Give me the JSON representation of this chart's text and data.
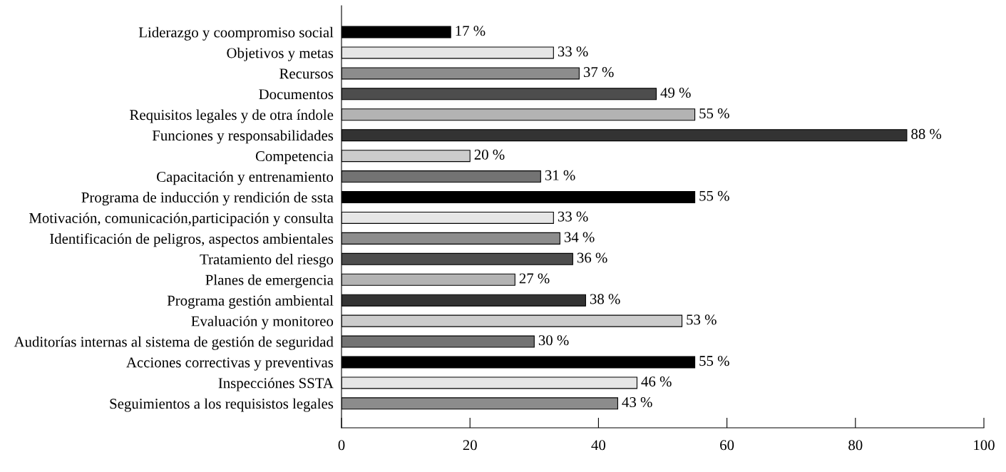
{
  "chart_data": {
    "type": "bar",
    "orientation": "horizontal",
    "categories": [
      "Liderazgo y coompromiso social",
      "Objetivos y metas",
      "Recursos",
      "Documentos",
      "Requisitos legales y de otra índole",
      "Funciones y responsabilidades",
      "Competencia",
      "Capacitación y entrenamiento",
      "Programa de inducción y rendición de ssta",
      "Motivación, comunicación,participación y consulta",
      "Identificación de peligros, aspectos ambientales",
      "Tratamiento del riesgo",
      "Planes de emergencia",
      "Programa gestión ambiental",
      "Evaluación y monitoreo",
      "Auditorías internas al sistema de gestión de seguridad",
      "Acciones correctivas y preventivas",
      "Inspecciónes SSTA",
      "Seguimientos a los requisistos legales"
    ],
    "values": [
      17,
      33,
      37,
      49,
      55,
      88,
      20,
      31,
      55,
      33,
      34,
      36,
      27,
      38,
      53,
      30,
      55,
      46,
      43
    ],
    "value_labels": [
      "17 %",
      "33 %",
      "37 %",
      "49 %",
      "55 %",
      "88 %",
      "20 %",
      "31 %",
      "55 %",
      "33 %",
      "34 %",
      "36 %",
      "27 %",
      "38 %",
      "53 %",
      "30 %",
      "55 %",
      "46 %",
      "43 %"
    ],
    "colors": [
      "#000000",
      "#e6e6e6",
      "#8c8c8c",
      "#4d4d4d",
      "#b3b3b3",
      "#333333",
      "#cccccc",
      "#737373",
      "#000000",
      "#e6e6e6",
      "#8c8c8c",
      "#4d4d4d",
      "#b3b3b3",
      "#333333",
      "#cccccc",
      "#737373",
      "#000000",
      "#e6e6e6",
      "#8c8c8c"
    ],
    "xlim": [
      0,
      100
    ],
    "xticks": [
      0,
      20,
      40,
      60,
      80,
      100
    ],
    "grid": false,
    "legend": false
  }
}
